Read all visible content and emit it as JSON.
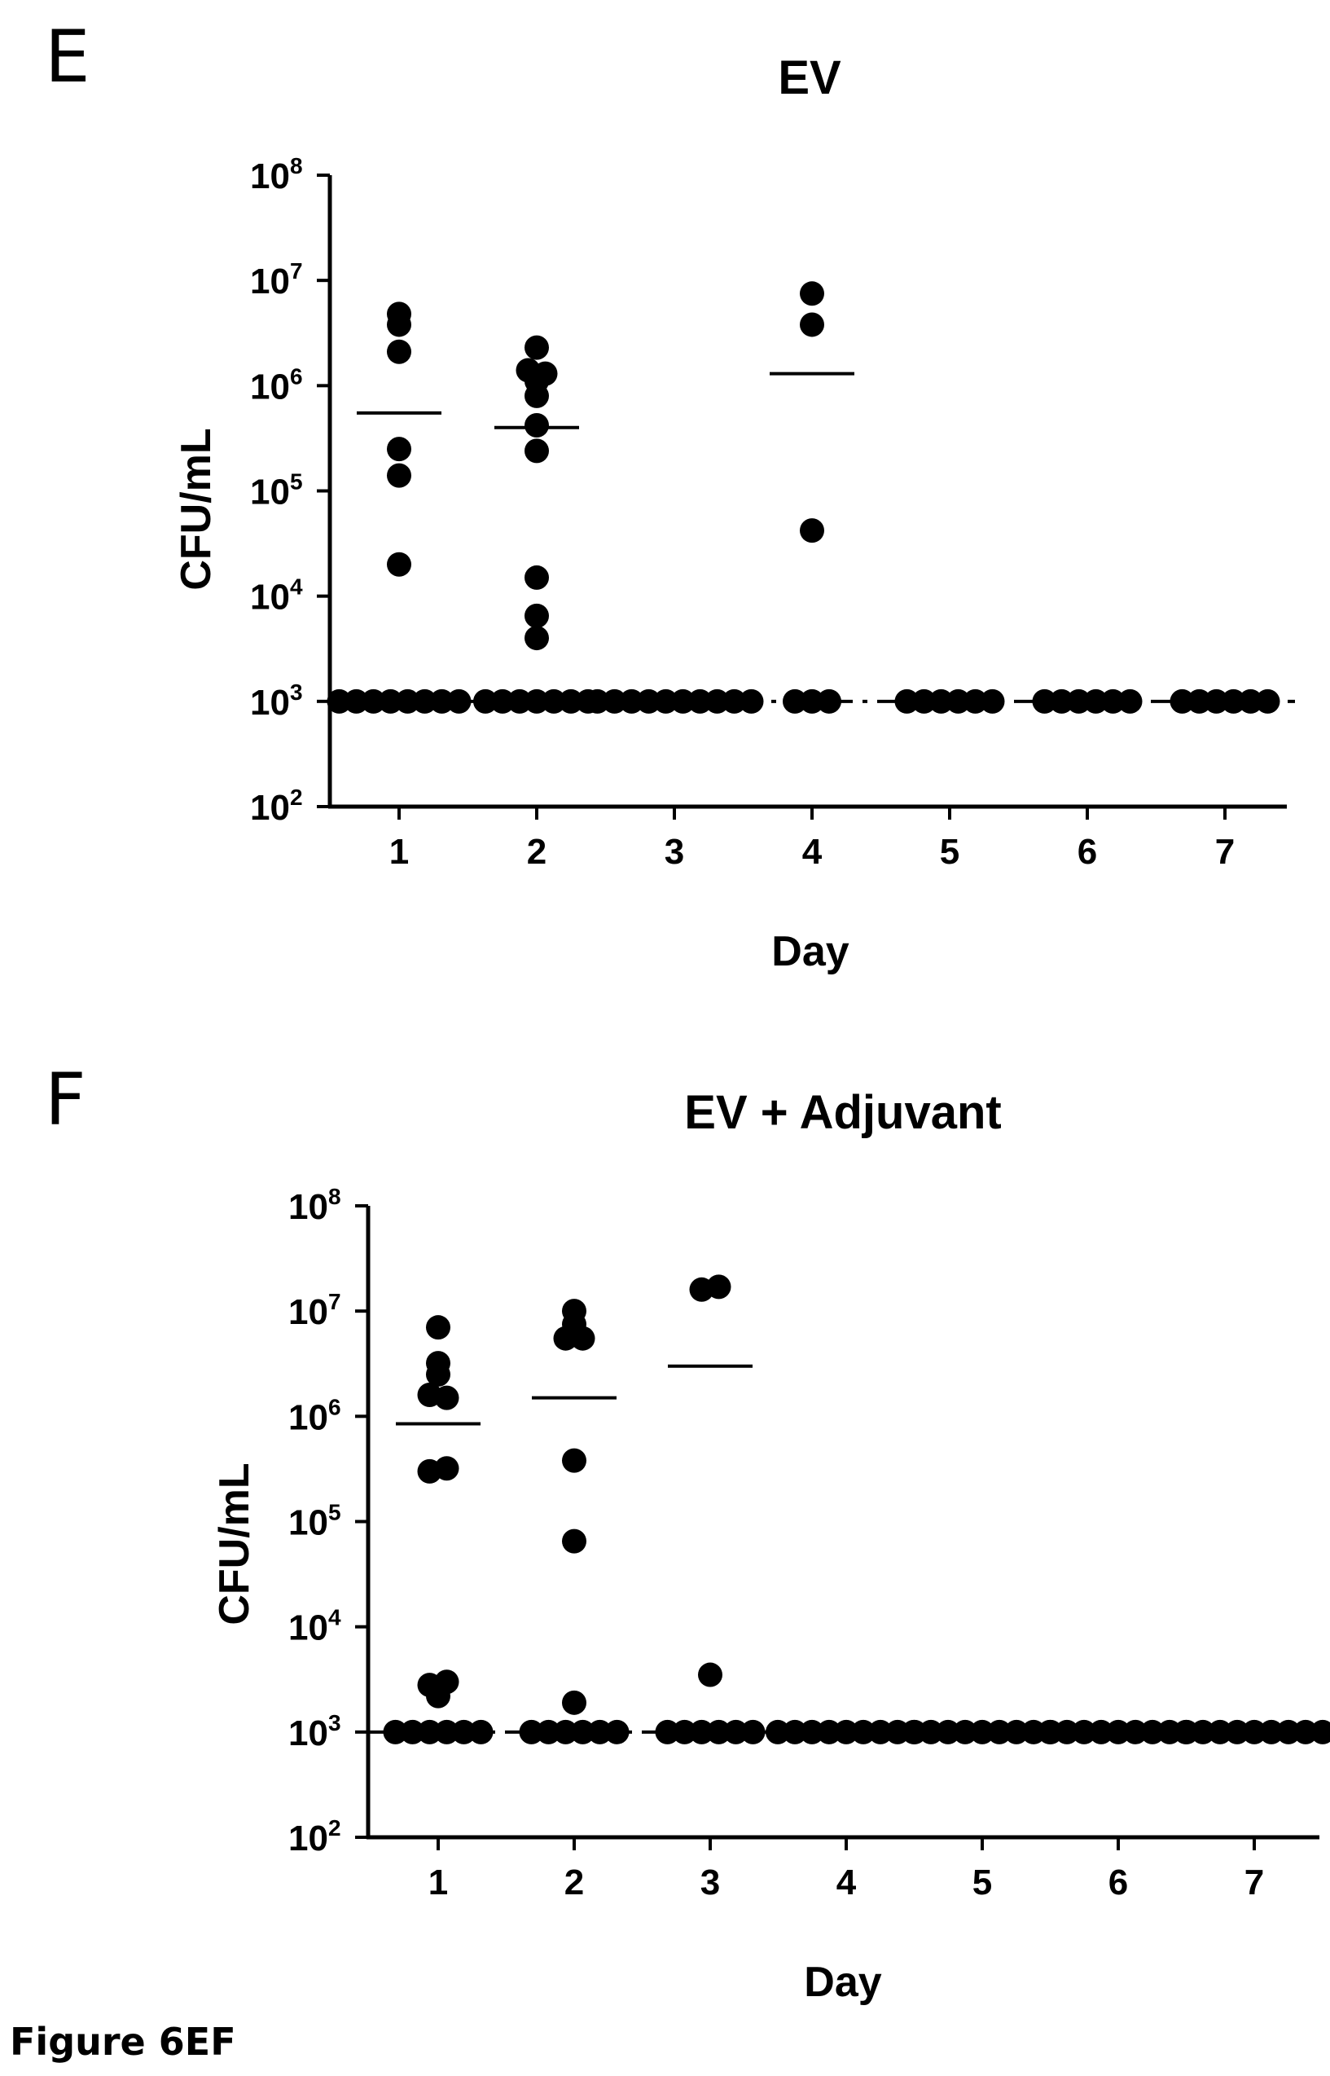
{
  "caption": "Figure 6EF",
  "chart_data": [
    {
      "type": "scatter",
      "panel": "E",
      "title": "EV",
      "xlabel": "Day",
      "ylabel": "CFU/mL",
      "yscale": "log",
      "ylim": [
        100,
        100000000
      ],
      "y_ticks": [
        {
          "base": "10",
          "exp": "2",
          "value": 100
        },
        {
          "base": "10",
          "exp": "3",
          "value": 1000
        },
        {
          "base": "10",
          "exp": "4",
          "value": 10000
        },
        {
          "base": "10",
          "exp": "5",
          "value": 100000
        },
        {
          "base": "10",
          "exp": "6",
          "value": 1000000
        },
        {
          "base": "10",
          "exp": "7",
          "value": 10000000
        },
        {
          "base": "10",
          "exp": "8",
          "value": 100000000
        }
      ],
      "categories": [
        "1",
        "2",
        "3",
        "4",
        "5",
        "6",
        "7"
      ],
      "detection_limit": 1000,
      "groups": [
        {
          "day": "1",
          "points": [
            3800000,
            4800000,
            2100000,
            250000,
            140000,
            20000,
            1000,
            1000,
            1000,
            1000,
            1000,
            1000,
            1000,
            1000
          ],
          "mean": 550000
        },
        {
          "day": "2",
          "points": [
            1400000,
            2300000,
            1100000,
            800000,
            1300000,
            420000,
            240000,
            15000,
            6500,
            4000,
            1000,
            1000,
            1000,
            1000,
            1000,
            1000,
            1000
          ],
          "mean": 400000
        },
        {
          "day": "3",
          "points": [
            1000,
            1000,
            1000,
            1000,
            1000,
            1000,
            1000,
            1000,
            1000,
            1000
          ],
          "mean": null
        },
        {
          "day": "4",
          "points": [
            3800000,
            7500000,
            42000,
            1000,
            1000,
            1000
          ],
          "mean": 1300000
        },
        {
          "day": "5",
          "points": [
            1000,
            1000,
            1000,
            1000,
            1000,
            1000
          ],
          "mean": null
        },
        {
          "day": "6",
          "points": [
            1000,
            1000,
            1000,
            1000,
            1000,
            1000
          ],
          "mean": null
        },
        {
          "day": "7",
          "points": [
            1000,
            1000,
            1000,
            1000,
            1000,
            1000
          ],
          "mean": null
        }
      ]
    },
    {
      "type": "scatter",
      "panel": "F",
      "title": "EV + Adjuvant",
      "xlabel": "Day",
      "ylabel": "CFU/mL",
      "yscale": "log",
      "ylim": [
        100,
        100000000
      ],
      "y_ticks": [
        {
          "base": "10",
          "exp": "2",
          "value": 100
        },
        {
          "base": "10",
          "exp": "3",
          "value": 1000
        },
        {
          "base": "10",
          "exp": "4",
          "value": 10000
        },
        {
          "base": "10",
          "exp": "5",
          "value": 100000
        },
        {
          "base": "10",
          "exp": "6",
          "value": 1000000
        },
        {
          "base": "10",
          "exp": "7",
          "value": 10000000
        },
        {
          "base": "10",
          "exp": "8",
          "value": 100000000
        }
      ],
      "categories": [
        "1",
        "2",
        "3",
        "4",
        "5",
        "6",
        "7"
      ],
      "detection_limit": 1000,
      "groups": [
        {
          "day": "1",
          "points": [
            7000000,
            3200000,
            2500000,
            1600000,
            1500000,
            300000,
            320000,
            2800,
            2200,
            3000,
            1000,
            1000,
            1000,
            1000,
            1000,
            1000
          ],
          "mean": 850000
        },
        {
          "day": "2",
          "points": [
            7500000,
            10000000,
            5500000,
            5500000,
            380000,
            65000,
            1900,
            1000,
            1000,
            1000,
            1000,
            1000,
            1000
          ],
          "mean": 1500000
        },
        {
          "day": "3",
          "points": [
            16000000,
            17000000,
            3500,
            1000,
            1000,
            1000,
            1000,
            1000,
            1000
          ],
          "mean": 3000000
        },
        {
          "day": "4",
          "points": [
            1000,
            1000,
            1000,
            1000,
            1000,
            1000,
            1000,
            1000,
            1000
          ],
          "mean": null
        },
        {
          "day": "5",
          "points": [
            1000,
            1000,
            1000,
            1000,
            1000,
            1000,
            1000,
            1000,
            1000
          ],
          "mean": null
        },
        {
          "day": "6",
          "points": [
            1000,
            1000,
            1000,
            1000,
            1000,
            1000,
            1000,
            1000,
            1000
          ],
          "mean": null
        },
        {
          "day": "7",
          "points": [
            1000,
            1000,
            1000,
            1000,
            1000,
            1000,
            1000,
            1000,
            1000
          ],
          "mean": null
        }
      ]
    }
  ]
}
